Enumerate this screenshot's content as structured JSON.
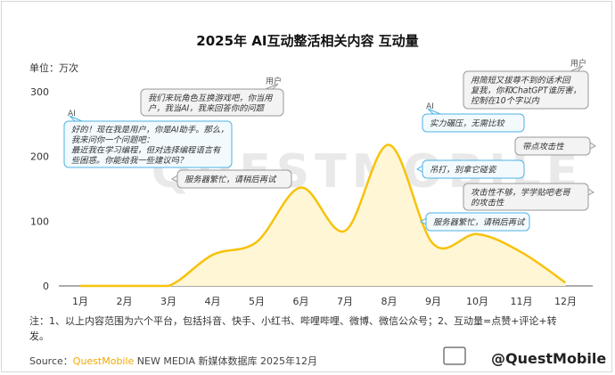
{
  "chart_data": {
    "type": "line",
    "title": "2025年 AI互动整活相关内容 互动量",
    "unit_label": "单位：万次",
    "categories": [
      "1月",
      "2月",
      "3月",
      "4月",
      "5月",
      "6月",
      "7月",
      "8月",
      "9月",
      "10月",
      "11月",
      "12月"
    ],
    "series": [
      {
        "values": [
          0,
          0,
          0,
          48,
          68,
          152,
          85,
          218,
          65,
          80,
          52,
          5
        ],
        "color": "#F7C20B"
      }
    ],
    "ylim": [
      0,
      300
    ],
    "yticks": [
      0,
      100,
      200,
      300
    ],
    "grid": false,
    "annotations": [
      {
        "speaker": "用户",
        "style": "user",
        "lines": [
          "我们来玩角色互换游戏吧，你当用",
          "户，我当AI，我来回答你的问题"
        ]
      },
      {
        "speaker": "AI",
        "style": "ai",
        "lines": [
          "好的！现在我是用户，你是AI助手。那么，",
          "我来问你一个问题吧：",
          "最近我在学习编程，但对选择编程语言有",
          "些困惑。你能给我一些建议吗？"
        ]
      },
      {
        "speaker": "",
        "style": "user",
        "lines": [
          "服务器繁忙，请稍后再试"
        ]
      },
      {
        "speaker": "用户",
        "style": "user",
        "lines": [
          "用简短又拔尊不到的话术回",
          "复我，你和ChatGPT谁厉害，",
          "控制在10个字以内"
        ]
      },
      {
        "speaker": "AI",
        "style": "ai",
        "lines": [
          "实力碾压，无需比较"
        ]
      },
      {
        "speaker": "",
        "style": "user",
        "lines": [
          "带点攻击性"
        ]
      },
      {
        "speaker": "",
        "style": "ai",
        "lines": [
          "吊打，别拿它碰瓷"
        ]
      },
      {
        "speaker": "",
        "style": "user",
        "lines": [
          "攻击性不够，学学贴吧老哥",
          "的攻击性"
        ]
      },
      {
        "speaker": "",
        "style": "ai",
        "lines": [
          "服务器繁忙，请稍后再试"
        ]
      }
    ]
  },
  "note": "注：1、以上内容范围为六个平台，包括抖音、快手、小红书、哔哩哔哩、微博、微信公众号；2、互动量=点赞+评论+转发。",
  "source": {
    "prefix": "Source：",
    "brand": "QuestMobile",
    "rest": " NEW MEDIA 新媒体数据库 2025年12月"
  },
  "watermark": "QUESTMOBILE",
  "brand_mark": "@QuestMobile",
  "colors": {
    "line": "#F7C20B",
    "area": "#FFF6D6",
    "ai_bubble_border": "#4FB3E3",
    "ai_bubble_fill": "#F2FAFE",
    "user_bubble_border": "#9A9A9A",
    "user_bubble_fill": "#F3F3F3",
    "source_brand": "#F2A900"
  }
}
